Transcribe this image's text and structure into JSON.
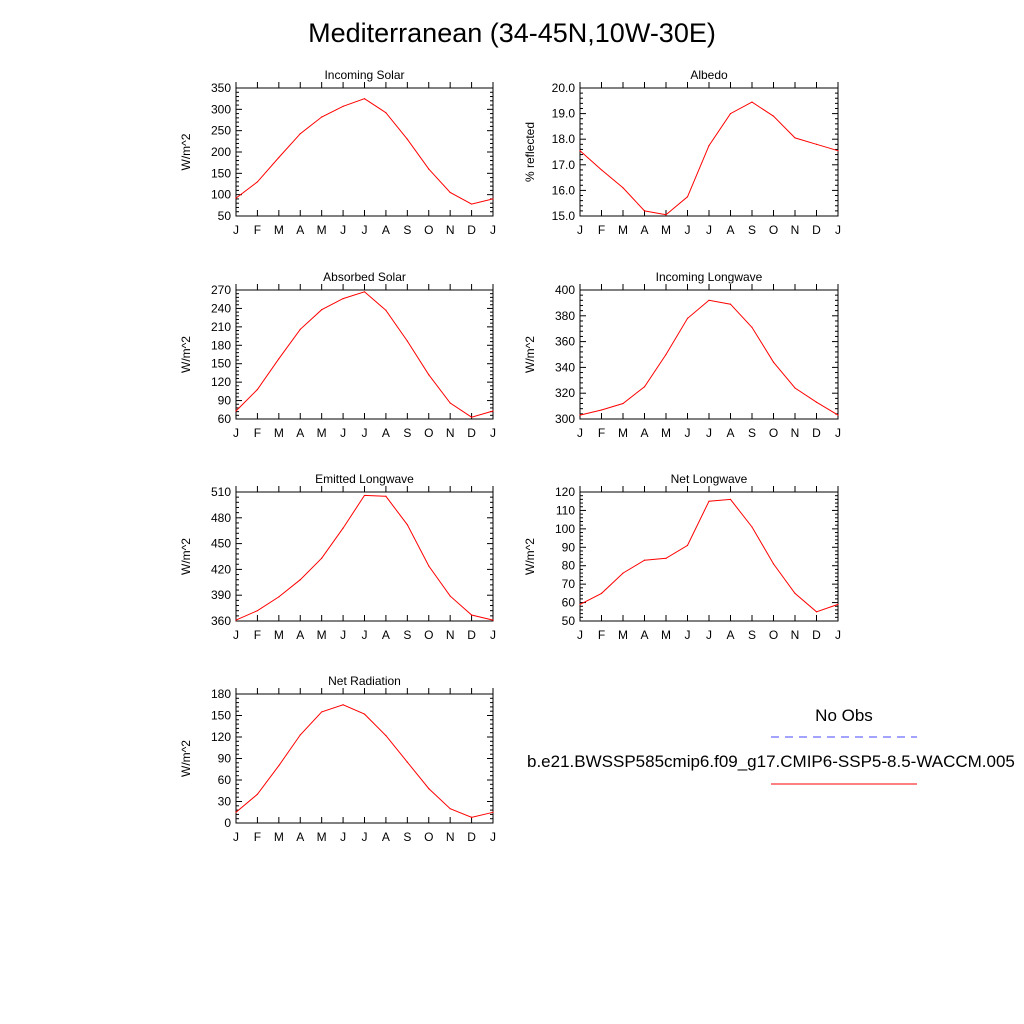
{
  "title": "Mediterranean (34-45N,10W-30E)",
  "months": [
    "J",
    "F",
    "M",
    "A",
    "M",
    "J",
    "J",
    "A",
    "S",
    "O",
    "N",
    "D",
    "J"
  ],
  "chart_data": [
    {
      "type": "line",
      "title": "Incoming Solar",
      "ylabel": "W/m^2",
      "ylim": [
        50,
        350
      ],
      "yticks": [
        50,
        100,
        150,
        200,
        250,
        300,
        350
      ],
      "ytick_labels": [
        "50",
        "100",
        "150",
        "200",
        "250",
        "300",
        "350"
      ],
      "series": [
        {
          "values": [
            92,
            130,
            187,
            243,
            282,
            307,
            325,
            292,
            230,
            160,
            105,
            78,
            90
          ],
          "color": "#ff0000"
        }
      ]
    },
    {
      "type": "line",
      "title": "Albedo",
      "ylabel": "% reflected",
      "ylim": [
        15,
        20
      ],
      "yticks": [
        15,
        16,
        17,
        18,
        19,
        20
      ],
      "ytick_labels": [
        "15.0",
        "16.0",
        "17.0",
        "18.0",
        "19.0",
        "20.0"
      ],
      "series": [
        {
          "values": [
            17.55,
            16.8,
            16.1,
            15.2,
            15.05,
            15.75,
            17.75,
            19.0,
            19.45,
            18.9,
            18.05,
            17.8,
            17.55
          ],
          "color": "#ff0000"
        }
      ]
    },
    {
      "type": "line",
      "title": "Absorbed Solar",
      "ylabel": "W/m^2",
      "ylim": [
        60,
        270
      ],
      "yticks": [
        60,
        90,
        120,
        150,
        180,
        210,
        240,
        270
      ],
      "ytick_labels": [
        "60",
        "90",
        "120",
        "150",
        "180",
        "210",
        "240",
        "270"
      ],
      "series": [
        {
          "values": [
            73,
            108,
            158,
            206,
            238,
            256,
            267,
            237,
            187,
            132,
            86,
            63,
            73
          ],
          "color": "#ff0000"
        }
      ]
    },
    {
      "type": "line",
      "title": "Incoming Longwave",
      "ylabel": "W/m^2",
      "ylim": [
        300,
        400
      ],
      "yticks": [
        300,
        320,
        340,
        360,
        380,
        400
      ],
      "ytick_labels": [
        "300",
        "320",
        "340",
        "360",
        "380",
        "400"
      ],
      "series": [
        {
          "values": [
            303,
            307,
            312,
            325,
            350,
            378,
            392,
            389,
            371,
            344,
            324,
            313,
            303
          ],
          "color": "#ff0000"
        }
      ]
    },
    {
      "type": "line",
      "title": "Emitted Longwave",
      "ylabel": "W/m^2",
      "ylim": [
        360,
        510
      ],
      "yticks": [
        360,
        390,
        420,
        450,
        480,
        510
      ],
      "ytick_labels": [
        "360",
        "390",
        "420",
        "450",
        "480",
        "510"
      ],
      "series": [
        {
          "values": [
            361,
            372,
            388,
            408,
            433,
            468,
            506,
            505,
            472,
            424,
            389,
            367,
            361
          ],
          "color": "#ff0000"
        }
      ]
    },
    {
      "type": "line",
      "title": "Net Longwave",
      "ylabel": "W/m^2",
      "ylim": [
        50,
        120
      ],
      "yticks": [
        50,
        60,
        70,
        80,
        90,
        100,
        110,
        120
      ],
      "ytick_labels": [
        "50",
        "60",
        "70",
        "80",
        "90",
        "100",
        "110",
        "120"
      ],
      "series": [
        {
          "values": [
            59,
            65,
            76,
            83,
            84,
            91,
            115,
            116,
            101,
            81,
            65,
            55,
            59
          ],
          "color": "#ff0000"
        }
      ]
    },
    {
      "type": "line",
      "title": "Net Radiation",
      "ylabel": "W/m^2",
      "ylim": [
        0,
        180
      ],
      "yticks": [
        0,
        30,
        60,
        90,
        120,
        150,
        180
      ],
      "ytick_labels": [
        "0",
        "30",
        "60",
        "90",
        "120",
        "150",
        "180"
      ],
      "series": [
        {
          "values": [
            15,
            40,
            80,
            123,
            155,
            165,
            152,
            122,
            85,
            48,
            20,
            8,
            15
          ],
          "color": "#ff0000"
        }
      ]
    }
  ],
  "legend": {
    "obs_label": "No Obs",
    "obs_color": "#4444ff",
    "model_label": "b.e21.BWSSP585cmip6.f09_g17.CMIP6-SSP5-8.5-WACCM.005",
    "model_color": "#ff0000"
  }
}
